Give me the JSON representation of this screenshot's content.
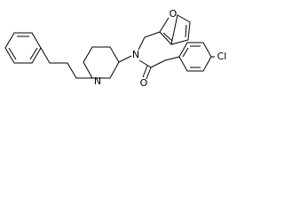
{
  "atoms": {
    "piperidine_n": "N",
    "amide_n": "N",
    "furan_o": "O",
    "carbonyl_o": "O",
    "chlorine": "Cl"
  }
}
